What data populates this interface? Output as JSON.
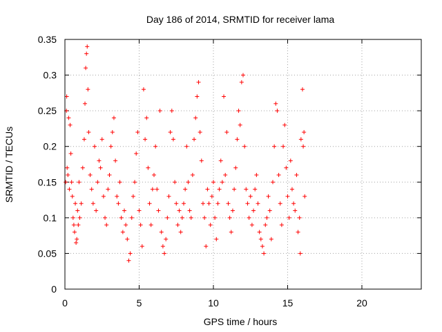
{
  "chart_data": {
    "type": "scatter",
    "title": "Day 186 of 2014, SRMTID for receiver lama",
    "xlabel": "GPS time / hours",
    "ylabel": "SRMTID / TECUs",
    "xlim": [
      0,
      24
    ],
    "ylim": [
      0,
      0.35
    ],
    "xticks": [
      0,
      5,
      10,
      15,
      20
    ],
    "yticks": [
      0,
      0.05,
      0.1,
      0.15,
      0.2,
      0.25,
      0.3,
      0.35
    ],
    "xtick_labels": [
      "0",
      "5",
      "10",
      "15",
      "20"
    ],
    "ytick_labels": [
      "0",
      "0.05",
      "0.1",
      "0.15",
      "0.2",
      "0.25",
      "0.3",
      "0.35"
    ],
    "grid": true,
    "marker": "+",
    "color": "#ff0000",
    "series": [
      {
        "name": "SRMTID",
        "points": [
          [
            0.05,
            0.15
          ],
          [
            0.1,
            0.25
          ],
          [
            0.12,
            0.27
          ],
          [
            0.15,
            0.17
          ],
          [
            0.2,
            0.16
          ],
          [
            0.25,
            0.24
          ],
          [
            0.3,
            0.14
          ],
          [
            0.35,
            0.23
          ],
          [
            0.4,
            0.19
          ],
          [
            0.45,
            0.15
          ],
          [
            0.5,
            0.13
          ],
          [
            0.55,
            0.1
          ],
          [
            0.6,
            0.09
          ],
          [
            0.65,
            0.08
          ],
          [
            0.7,
            0.12
          ],
          [
            0.75,
            0.065
          ],
          [
            0.8,
            0.07
          ],
          [
            0.85,
            0.11
          ],
          [
            0.9,
            0.09
          ],
          [
            0.95,
            0.15
          ],
          [
            1.0,
            0.1
          ],
          [
            1.1,
            0.12
          ],
          [
            1.2,
            0.17
          ],
          [
            1.3,
            0.21
          ],
          [
            1.35,
            0.26
          ],
          [
            1.4,
            0.31
          ],
          [
            1.45,
            0.33
          ],
          [
            1.5,
            0.34
          ],
          [
            1.55,
            0.28
          ],
          [
            1.6,
            0.22
          ],
          [
            1.7,
            0.16
          ],
          [
            1.8,
            0.14
          ],
          [
            1.9,
            0.12
          ],
          [
            2.0,
            0.2
          ],
          [
            2.1,
            0.11
          ],
          [
            2.2,
            0.15
          ],
          [
            2.3,
            0.18
          ],
          [
            2.4,
            0.17
          ],
          [
            2.5,
            0.21
          ],
          [
            2.6,
            0.13
          ],
          [
            2.7,
            0.1
          ],
          [
            2.8,
            0.09
          ],
          [
            2.9,
            0.14
          ],
          [
            3.0,
            0.16
          ],
          [
            3.1,
            0.2
          ],
          [
            3.2,
            0.22
          ],
          [
            3.3,
            0.24
          ],
          [
            3.4,
            0.18
          ],
          [
            3.5,
            0.13
          ],
          [
            3.6,
            0.12
          ],
          [
            3.7,
            0.15
          ],
          [
            3.8,
            0.1
          ],
          [
            3.9,
            0.08
          ],
          [
            4.0,
            0.11
          ],
          [
            4.1,
            0.09
          ],
          [
            4.2,
            0.07
          ],
          [
            4.3,
            0.04
          ],
          [
            4.4,
            0.05
          ],
          [
            4.5,
            0.1
          ],
          [
            4.6,
            0.13
          ],
          [
            4.7,
            0.15
          ],
          [
            4.8,
            0.19
          ],
          [
            4.9,
            0.22
          ],
          [
            5.0,
            0.11
          ],
          [
            5.1,
            0.09
          ],
          [
            5.2,
            0.06
          ],
          [
            5.3,
            0.28
          ],
          [
            5.4,
            0.21
          ],
          [
            5.5,
            0.24
          ],
          [
            5.6,
            0.17
          ],
          [
            5.7,
            0.12
          ],
          [
            5.8,
            0.09
          ],
          [
            5.9,
            0.14
          ],
          [
            6.0,
            0.16
          ],
          [
            6.1,
            0.2
          ],
          [
            6.2,
            0.14
          ],
          [
            6.3,
            0.11
          ],
          [
            6.4,
            0.25
          ],
          [
            6.5,
            0.08
          ],
          [
            6.6,
            0.06
          ],
          [
            6.7,
            0.05
          ],
          [
            6.8,
            0.07
          ],
          [
            6.9,
            0.1
          ],
          [
            7.0,
            0.13
          ],
          [
            7.1,
            0.22
          ],
          [
            7.2,
            0.25
          ],
          [
            7.3,
            0.21
          ],
          [
            7.4,
            0.15
          ],
          [
            7.5,
            0.12
          ],
          [
            7.6,
            0.09
          ],
          [
            7.7,
            0.11
          ],
          [
            7.8,
            0.08
          ],
          [
            7.9,
            0.1
          ],
          [
            8.0,
            0.12
          ],
          [
            8.1,
            0.14
          ],
          [
            8.2,
            0.2
          ],
          [
            8.3,
            0.15
          ],
          [
            8.4,
            0.11
          ],
          [
            8.5,
            0.1
          ],
          [
            8.6,
            0.16
          ],
          [
            8.7,
            0.21
          ],
          [
            8.8,
            0.24
          ],
          [
            8.9,
            0.27
          ],
          [
            9.0,
            0.29
          ],
          [
            9.1,
            0.22
          ],
          [
            9.2,
            0.18
          ],
          [
            9.3,
            0.12
          ],
          [
            9.4,
            0.1
          ],
          [
            9.5,
            0.06
          ],
          [
            9.6,
            0.14
          ],
          [
            9.7,
            0.12
          ],
          [
            9.8,
            0.09
          ],
          [
            9.9,
            0.13
          ],
          [
            10.0,
            0.15
          ],
          [
            10.1,
            0.1
          ],
          [
            10.2,
            0.07
          ],
          [
            10.3,
            0.12
          ],
          [
            10.4,
            0.14
          ],
          [
            10.5,
            0.18
          ],
          [
            10.6,
            0.15
          ],
          [
            10.7,
            0.27
          ],
          [
            10.8,
            0.16
          ],
          [
            10.9,
            0.22
          ],
          [
            11.0,
            0.12
          ],
          [
            11.1,
            0.1
          ],
          [
            11.2,
            0.08
          ],
          [
            11.3,
            0.11
          ],
          [
            11.4,
            0.14
          ],
          [
            11.5,
            0.17
          ],
          [
            11.6,
            0.21
          ],
          [
            11.7,
            0.25
          ],
          [
            11.8,
            0.23
          ],
          [
            11.9,
            0.29
          ],
          [
            12.0,
            0.3
          ],
          [
            12.1,
            0.2
          ],
          [
            12.2,
            0.14
          ],
          [
            12.3,
            0.12
          ],
          [
            12.4,
            0.1
          ],
          [
            12.5,
            0.13
          ],
          [
            12.6,
            0.09
          ],
          [
            12.7,
            0.11
          ],
          [
            12.8,
            0.14
          ],
          [
            12.9,
            0.16
          ],
          [
            13.0,
            0.12
          ],
          [
            13.1,
            0.08
          ],
          [
            13.2,
            0.07
          ],
          [
            13.3,
            0.06
          ],
          [
            13.4,
            0.05
          ],
          [
            13.5,
            0.09
          ],
          [
            13.6,
            0.1
          ],
          [
            13.7,
            0.13
          ],
          [
            13.8,
            0.11
          ],
          [
            13.9,
            0.07
          ],
          [
            14.0,
            0.15
          ],
          [
            14.1,
            0.2
          ],
          [
            14.2,
            0.26
          ],
          [
            14.3,
            0.25
          ],
          [
            14.4,
            0.16
          ],
          [
            14.5,
            0.12
          ],
          [
            14.6,
            0.09
          ],
          [
            14.7,
            0.2
          ],
          [
            14.8,
            0.23
          ],
          [
            14.9,
            0.17
          ],
          [
            15.0,
            0.13
          ],
          [
            15.1,
            0.1
          ],
          [
            15.2,
            0.18
          ],
          [
            15.3,
            0.14
          ],
          [
            15.4,
            0.12
          ],
          [
            15.5,
            0.11
          ],
          [
            15.6,
            0.16
          ],
          [
            15.7,
            0.08
          ],
          [
            15.8,
            0.1
          ],
          [
            15.85,
            0.05
          ],
          [
            15.9,
            0.21
          ],
          [
            16.0,
            0.28
          ],
          [
            16.05,
            0.2
          ],
          [
            16.1,
            0.22
          ],
          [
            16.15,
            0.13
          ]
        ]
      }
    ]
  }
}
